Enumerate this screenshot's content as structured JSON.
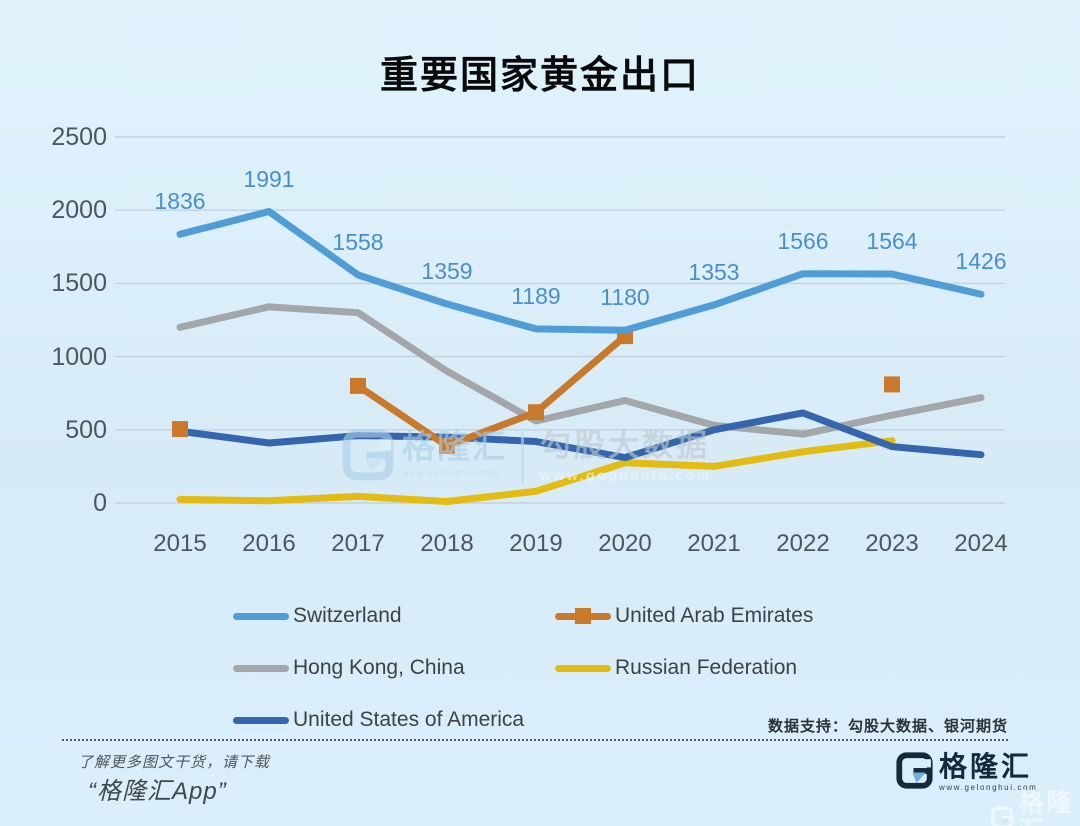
{
  "title": "重要国家黄金出口",
  "chart_data": {
    "type": "line",
    "title": "重要国家黄金出口",
    "x": [
      "2015",
      "2016",
      "2017",
      "2018",
      "2019",
      "2020",
      "2021",
      "2022",
      "2023",
      "2024"
    ],
    "ylim": [
      0,
      2500
    ],
    "yticks": [
      0,
      500,
      1000,
      1500,
      2000,
      2500
    ],
    "grid": "horizontal",
    "legend_position": "bottom",
    "series": [
      {
        "name": "Switzerland",
        "color": "#4f9cd6",
        "marker": "none",
        "show_labels": true,
        "values": [
          1836,
          1991,
          1558,
          1359,
          1189,
          1180,
          1353,
          1566,
          1564,
          1426
        ]
      },
      {
        "name": "United Arab Emirates",
        "color": "#c8792b",
        "marker": "square",
        "show_labels": false,
        "values": [
          505,
          null,
          800,
          390,
          620,
          1140,
          null,
          null,
          810,
          null
        ]
      },
      {
        "name": "Hong Kong, China",
        "color": "#a3a7a9",
        "marker": "none",
        "show_labels": false,
        "values": [
          1200,
          1340,
          1300,
          900,
          560,
          700,
          530,
          470,
          600,
          720
        ]
      },
      {
        "name": "Russian Federation",
        "color": "#e2bc13",
        "marker": "none",
        "show_labels": false,
        "values": [
          25,
          15,
          45,
          10,
          80,
          275,
          250,
          350,
          425,
          null
        ]
      },
      {
        "name": "United States of America",
        "color": "#3465ad",
        "marker": "none",
        "show_labels": false,
        "values": [
          490,
          410,
          460,
          450,
          420,
          310,
          500,
          615,
          385,
          330
        ]
      }
    ]
  },
  "watermark_center": {
    "brand": "格隆汇",
    "brand_url": "www.gelonghui.com",
    "partner": "勾股大数据",
    "partner_url": "www.gogudata.com"
  },
  "support_note": "数据支持：勾股大数据、银河期货",
  "footer": {
    "promo_line1": "了解更多图文干货，请下载",
    "promo_line2": "“格隆汇App”",
    "brand_name": "格隆汇",
    "brand_url": "www.gelonghui.com"
  },
  "colors": {
    "background": "#d9edf8",
    "grid": "#c3d3dd",
    "axis_text": "#4c565e",
    "data_label_text": "#4a90c8",
    "legend_text": "#3d4245",
    "brand_navy": "#16293b",
    "brand_light_blue": "#74aedb"
  }
}
